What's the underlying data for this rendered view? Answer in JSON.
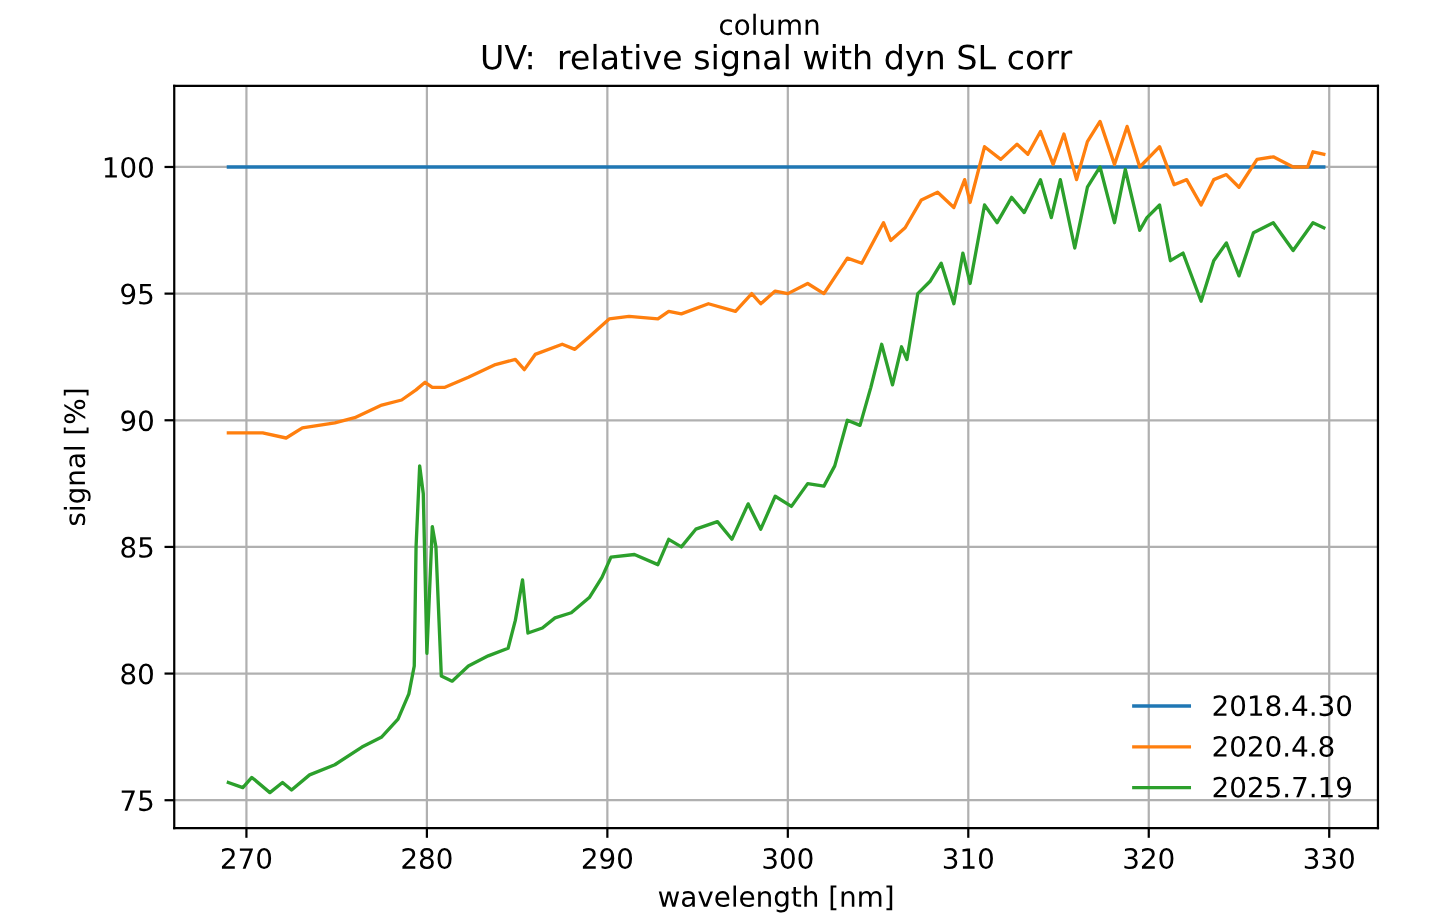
{
  "chart_data": {
    "type": "line",
    "title": "UV:  relative signal with dyn SL corr",
    "annotations": [
      "column"
    ],
    "xlabel": "wavelength [nm]",
    "ylabel": "signal [%]",
    "xlim": [
      266.0,
      332.7
    ],
    "ylim": [
      73.9,
      103.2
    ],
    "xticks": [
      270,
      280,
      290,
      300,
      310,
      320,
      330
    ],
    "yticks": [
      75,
      80,
      85,
      90,
      95,
      100
    ],
    "grid": true,
    "legend": "bottom right",
    "series": [
      {
        "name": "2018.4.30",
        "color": "#1f77b4",
        "x": [
          269.0,
          329.7
        ],
        "values": [
          100,
          100
        ]
      },
      {
        "name": "2020.4.8",
        "color": "#ff7f0e",
        "x": [
          269.0,
          269.8,
          270.9,
          272.2,
          273.1,
          274.9,
          276.0,
          277.5,
          278.6,
          279.4,
          279.9,
          280.3,
          281.0,
          282.3,
          283.8,
          284.9,
          285.4,
          286.0,
          287.5,
          288.2,
          289.0,
          290.1,
          291.2,
          292.8,
          293.4,
          294.1,
          295.6,
          297.1,
          298.0,
          298.5,
          299.3,
          300.0,
          301.1,
          302.0,
          303.3,
          304.1,
          305.3,
          305.7,
          306.5,
          307.4,
          308.3,
          309.2,
          309.8,
          310.1,
          310.9,
          311.8,
          312.7,
          313.3,
          314.0,
          314.7,
          315.3,
          316.0,
          316.6,
          317.3,
          318.1,
          318.8,
          319.5,
          320.6,
          321.4,
          322.1,
          322.9,
          323.6,
          324.3,
          325.0,
          326.0,
          326.9,
          328.0,
          328.8,
          329.1,
          329.7
        ],
        "values": [
          89.5,
          89.5,
          89.5,
          89.3,
          89.7,
          89.9,
          90.1,
          90.6,
          90.8,
          91.2,
          91.5,
          91.3,
          91.3,
          91.7,
          92.2,
          92.4,
          92.0,
          92.6,
          93.0,
          92.8,
          93.3,
          94.0,
          94.1,
          94.0,
          94.3,
          94.2,
          94.6,
          94.3,
          95.0,
          94.6,
          95.1,
          95.0,
          95.4,
          95.0,
          96.4,
          96.2,
          97.8,
          97.1,
          97.6,
          98.7,
          99.0,
          98.4,
          99.5,
          98.6,
          100.8,
          100.3,
          100.9,
          100.5,
          101.4,
          100.1,
          101.3,
          99.5,
          101.0,
          101.8,
          100.1,
          101.6,
          100.0,
          100.8,
          99.3,
          99.5,
          98.5,
          99.5,
          99.7,
          99.2,
          100.3,
          100.4,
          100.0,
          100.0,
          100.6,
          100.5
        ]
      },
      {
        "name": "2025.7.19",
        "color": "#2ca02c",
        "x": [
          269.0,
          269.8,
          270.3,
          271.3,
          272.0,
          272.5,
          273.5,
          274.9,
          276.4,
          277.5,
          278.4,
          279.0,
          279.3,
          279.4,
          279.6,
          279.8,
          280.0,
          280.3,
          280.5,
          280.8,
          281.4,
          282.3,
          283.4,
          284.5,
          284.9,
          285.3,
          285.6,
          286.4,
          287.1,
          288.0,
          289.0,
          289.7,
          290.2,
          291.5,
          292.8,
          293.4,
          294.1,
          294.9,
          296.1,
          296.9,
          297.8,
          298.5,
          299.3,
          300.2,
          301.1,
          302.0,
          302.6,
          303.3,
          304.0,
          304.6,
          305.2,
          305.8,
          306.3,
          306.6,
          307.2,
          307.9,
          308.5,
          309.2,
          309.7,
          310.1,
          310.9,
          311.6,
          312.4,
          313.1,
          314.0,
          314.6,
          315.1,
          315.9,
          316.6,
          317.3,
          318.1,
          318.7,
          319.5,
          319.9,
          320.6,
          321.2,
          321.9,
          322.9,
          323.6,
          324.3,
          325.0,
          325.8,
          326.9,
          328.0,
          329.1,
          329.7
        ],
        "values": [
          75.7,
          75.5,
          75.9,
          75.3,
          75.7,
          75.4,
          76.0,
          76.4,
          77.1,
          77.5,
          78.2,
          79.2,
          80.3,
          85.0,
          88.2,
          87.1,
          80.8,
          85.8,
          85.0,
          79.9,
          79.7,
          80.3,
          80.7,
          81.0,
          82.1,
          83.7,
          81.6,
          81.8,
          82.2,
          82.4,
          83.0,
          83.8,
          84.6,
          84.7,
          84.3,
          85.3,
          85.0,
          85.7,
          86.0,
          85.3,
          86.7,
          85.7,
          87.0,
          86.6,
          87.5,
          87.4,
          88.2,
          90.0,
          89.8,
          91.3,
          93.0,
          91.4,
          92.9,
          92.4,
          95.0,
          95.5,
          96.2,
          94.6,
          96.6,
          95.4,
          98.5,
          97.8,
          98.8,
          98.2,
          99.5,
          98.0,
          99.5,
          96.8,
          99.2,
          100.0,
          97.8,
          99.9,
          97.5,
          98.0,
          98.5,
          96.3,
          96.6,
          94.7,
          96.3,
          97.0,
          95.7,
          97.4,
          97.8,
          96.7,
          97.8,
          97.6
        ]
      }
    ]
  }
}
